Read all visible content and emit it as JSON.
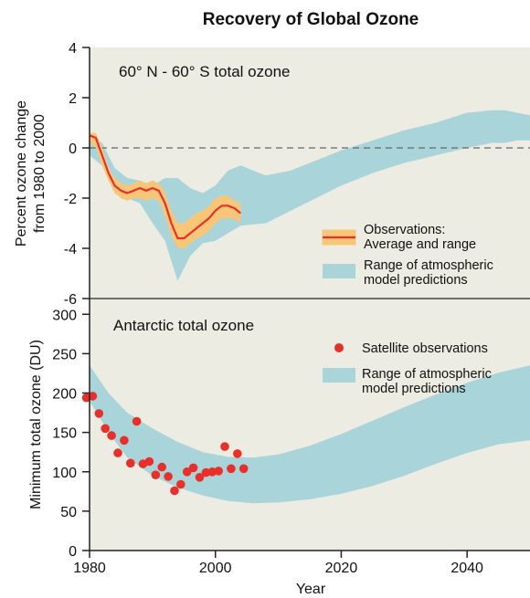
{
  "colors": {
    "panel_bg": "#ecece2",
    "model_band": "#a9d4da",
    "obs_band": "#f7c777",
    "obs_line": "#e8302a",
    "dots": "#e8302a",
    "axis": "#222222"
  },
  "chart_data": [
    {
      "type": "area",
      "title": "Recovery of Global Ozone",
      "panel_title": "60° N - 60° S total ozone",
      "ylabel": [
        "Percent ozone change",
        "from 1980 to 2000"
      ],
      "xlim": [
        1980,
        2050
      ],
      "ylim": [
        -6,
        4
      ],
      "y_ticks": [
        4,
        2,
        0,
        -2,
        -4,
        -6
      ],
      "zero_line": true,
      "legend_position": "right",
      "legend": {
        "observations": [
          "Observations:",
          "Average and range"
        ],
        "model": [
          "Range of atmospheric",
          "model predictions"
        ]
      },
      "model_range": {
        "x": [
          1980,
          1982,
          1984,
          1986,
          1988,
          1990,
          1992,
          1994,
          1996,
          1998,
          2000,
          2002,
          2004,
          2008,
          2012,
          2016,
          2020,
          2025,
          2030,
          2035,
          2040,
          2044,
          2046,
          2048,
          2050
        ],
        "upper": [
          0.5,
          0.2,
          -0.8,
          -1.2,
          -1.3,
          -1.5,
          -1.2,
          -1.2,
          -1.6,
          -1.8,
          -1.5,
          -0.9,
          -0.7,
          -1.1,
          -0.9,
          -0.5,
          -0.1,
          0.3,
          0.7,
          1.0,
          1.4,
          1.5,
          1.5,
          1.4,
          1.3
        ],
        "lower": [
          -0.3,
          -0.7,
          -1.8,
          -2.0,
          -2.2,
          -3.0,
          -3.7,
          -5.3,
          -4.3,
          -3.8,
          -3.7,
          -3.4,
          -3.1,
          -3.0,
          -2.5,
          -2.0,
          -1.5,
          -1.0,
          -0.6,
          -0.3,
          0.0,
          0.2,
          0.2,
          0.3,
          0.3
        ]
      },
      "observations": {
        "x": [
          1980,
          1981,
          1982,
          1983,
          1984,
          1985,
          1986,
          1987,
          1988,
          1989,
          1990,
          1991,
          1992,
          1993,
          1994,
          1995,
          1996,
          1997,
          1998,
          1999,
          2000,
          2001,
          2002,
          2003,
          2004
        ],
        "average": [
          0.5,
          0.4,
          -0.3,
          -1.0,
          -1.5,
          -1.7,
          -1.8,
          -1.7,
          -1.6,
          -1.7,
          -1.6,
          -1.7,
          -2.2,
          -3.0,
          -3.6,
          -3.6,
          -3.4,
          -3.2,
          -3.0,
          -2.8,
          -2.5,
          -2.3,
          -2.3,
          -2.4,
          -2.6
        ],
        "upper": [
          0.6,
          0.6,
          0.0,
          -0.8,
          -1.2,
          -1.4,
          -1.5,
          -1.4,
          -1.3,
          -1.4,
          -1.3,
          -1.4,
          -1.8,
          -2.5,
          -3.0,
          -3.0,
          -2.8,
          -2.6,
          -2.5,
          -2.3,
          -2.0,
          -1.9,
          -1.9,
          -2.1,
          -2.2
        ],
        "lower": [
          0.2,
          0.0,
          -0.7,
          -1.3,
          -1.8,
          -2.0,
          -2.1,
          -2.0,
          -2.0,
          -2.1,
          -2.0,
          -2.1,
          -2.7,
          -3.5,
          -4.0,
          -4.0,
          -3.8,
          -3.6,
          -3.5,
          -3.3,
          -3.0,
          -2.8,
          -2.8,
          -2.8,
          -3.0
        ]
      }
    },
    {
      "type": "scatter",
      "panel_title": "Antarctic total ozone",
      "xlabel": "Year",
      "ylabel": "Minimum total ozone (DU)",
      "xlim": [
        1980,
        2050
      ],
      "ylim": [
        0,
        320
      ],
      "x_ticks": [
        1980,
        2000,
        2020,
        2040
      ],
      "y_ticks": [
        300,
        250,
        200,
        150,
        100,
        50,
        0
      ],
      "legend_position": "top-right",
      "legend": {
        "satellite": "Satellite observations",
        "model": [
          "Range of atmospheric",
          "model predictions"
        ]
      },
      "model_range": {
        "x": [
          1980,
          1983,
          1986,
          1990,
          1994,
          1998,
          2002,
          2006,
          2010,
          2015,
          2020,
          2025,
          2030,
          2035,
          2040,
          2045,
          2050
        ],
        "upper": [
          235,
          200,
          175,
          155,
          138,
          125,
          119,
          118,
          122,
          133,
          148,
          165,
          182,
          198,
          213,
          226,
          235
        ],
        "lower": [
          190,
          150,
          118,
          95,
          80,
          70,
          63,
          60,
          61,
          65,
          72,
          82,
          95,
          110,
          124,
          135,
          140
        ]
      },
      "satellite": {
        "x": [
          1979.5,
          1980.5,
          1981.5,
          1982.5,
          1983.5,
          1984.5,
          1985.5,
          1986.5,
          1987.5,
          1988.5,
          1989.5,
          1990.5,
          1991.5,
          1992.5,
          1993.5,
          1994.5,
          1995.5,
          1996.5,
          1997.5,
          1998.5,
          1999.5,
          2000.5,
          2001.5,
          2002.5,
          2003.5,
          2004.5
        ],
        "y": [
          194,
          196,
          174,
          155,
          146,
          124,
          140,
          111,
          164,
          110,
          113,
          96,
          106,
          94,
          76,
          84,
          100,
          105,
          93,
          99,
          100,
          101,
          132,
          104,
          123,
          104
        ]
      }
    }
  ]
}
